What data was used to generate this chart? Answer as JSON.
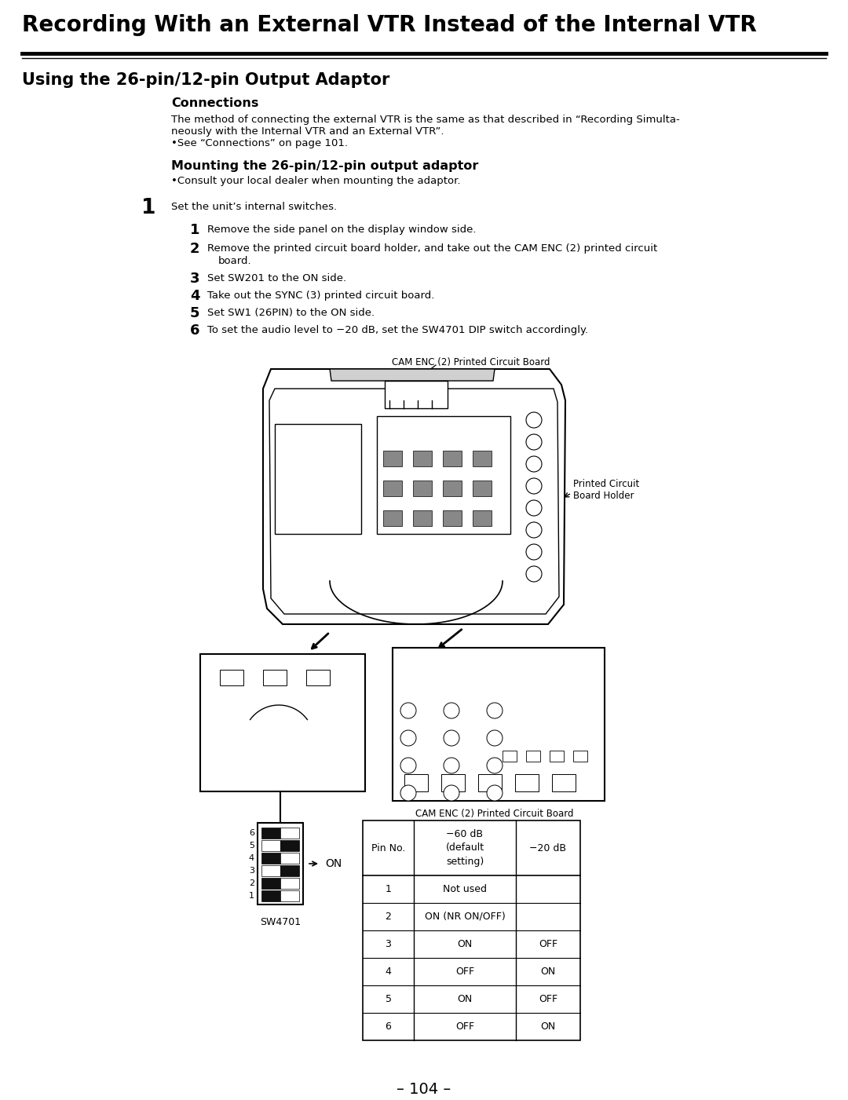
{
  "title": "Recording With an External VTR Instead of the Internal VTR",
  "subtitle": "Using the 26-pin/12-pin Output Adaptor",
  "bg_color": "#ffffff",
  "text_color": "#000000",
  "page_number": "– 104 –",
  "connections_heading": "Connections",
  "connections_body1": "The method of connecting the external VTR is the same as that described in “Recording Simulta-",
  "connections_body2": "neously with the Internal VTR and an External VTR”.",
  "connections_body3": "•See “Connections” on page 101.",
  "mounting_heading": "Mounting the 26-pin/12-pin output adaptor",
  "mounting_body": "•Consult your local dealer when mounting the adaptor.",
  "step1_main": "Set the unit’s internal switches.",
  "step1_sub1": "Remove the side panel on the display window side.",
  "step1_sub2": "Remove the printed circuit board holder, and take out the CAM ENC (2) printed circuit",
  "step1_sub2b": "board.",
  "step1_sub3": "Set SW201 to the ON side.",
  "step1_sub4": "Take out the SYNC (3) printed circuit board.",
  "step1_sub5": "Set SW1 (26PIN) to the ON side.",
  "step1_sub6": "To set the audio level to −20 dB, set the SW4701 DIP switch accordingly.",
  "cam_enc_label_top": "CAM ENC (2) Printed Circuit Board",
  "pcb_holder_label_line1": "Printed Circuit",
  "pcb_holder_label_line2": "Board Holder",
  "cam_enc_label_bottom": "CAM ENC (2) Printed Circuit Board",
  "sw4701_label": "SW4701",
  "on_label": "ON",
  "table_col0_header": "Pin No.",
  "table_col1_header": "−60 dB\n(default\nsetting)",
  "table_col2_header": "−20 dB",
  "table_rows": [
    [
      "1",
      "Not used",
      ""
    ],
    [
      "2",
      "ON (NR ON/OFF)",
      ""
    ],
    [
      "3",
      "ON",
      "OFF"
    ],
    [
      "4",
      "OFF",
      "ON"
    ],
    [
      "5",
      "ON",
      "OFF"
    ],
    [
      "6",
      "OFF",
      "ON"
    ]
  ],
  "dip_switch_states": [
    [
      true,
      false
    ],
    [
      true,
      false
    ],
    [
      false,
      true
    ],
    [
      true,
      false
    ],
    [
      false,
      true
    ],
    [
      true,
      false
    ]
  ]
}
